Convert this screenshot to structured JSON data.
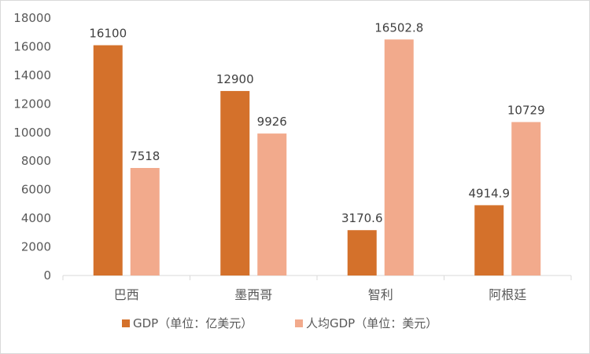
{
  "chart_data": {
    "type": "bar",
    "categories": [
      "巴西",
      "墨西哥",
      "智利",
      "阿根廷"
    ],
    "series": [
      {
        "name": "GDP（单位：亿美元）",
        "values": [
          16100,
          12900,
          3170.6,
          4914.9
        ],
        "labels": [
          "16100",
          "12900",
          "3170.6",
          "4914.9"
        ],
        "color": "#D4712B"
      },
      {
        "name": "人均GDP（单位：美元）",
        "values": [
          7518,
          9926,
          16502.8,
          10729
        ],
        "labels": [
          "7518",
          "9926",
          "16502.8",
          "10729"
        ],
        "color": "#F2AA8C"
      }
    ],
    "yticks": [
      "0",
      "2000",
      "4000",
      "6000",
      "8000",
      "10000",
      "12000",
      "14000",
      "16000",
      "18000"
    ],
    "ylim": [
      0,
      18000
    ],
    "grid": false,
    "legend_position": "bottom",
    "title": "",
    "xlabel": "",
    "ylabel": ""
  }
}
